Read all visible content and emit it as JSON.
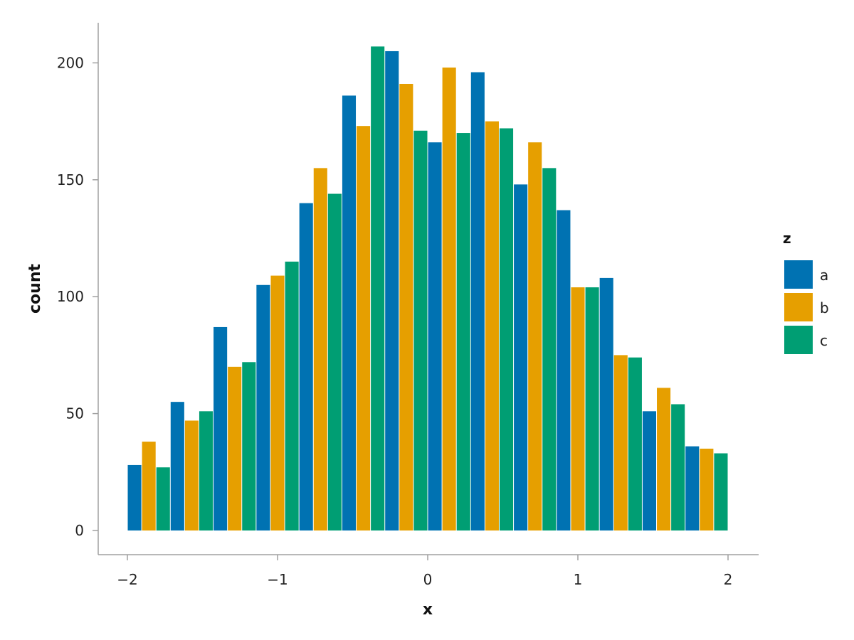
{
  "chart_data": {
    "type": "bar",
    "xlabel": "x",
    "ylabel": "count",
    "xlim": [
      -2.2,
      2.2
    ],
    "ylim": [
      -10,
      217
    ],
    "x_ticks": [
      -2,
      -1,
      0,
      1,
      2
    ],
    "x_tick_labels": [
      "−2",
      "−1",
      "0",
      "1",
      "2"
    ],
    "y_ticks": [
      0,
      50,
      100,
      150,
      200
    ],
    "y_tick_labels": [
      "0",
      "50",
      "100",
      "150",
      "200"
    ],
    "bin_edges": [
      -2.0,
      -1.7143,
      -1.4286,
      -1.1429,
      -0.8571,
      -0.5714,
      -0.2857,
      0.0,
      0.2857,
      0.5714,
      0.8571,
      1.1429,
      1.4286,
      1.7143,
      2.0
    ],
    "legend": {
      "title": "z",
      "placement": "right"
    },
    "series": [
      {
        "name": "a",
        "color": "#0072B2",
        "values": [
          28,
          55,
          87,
          105,
          140,
          186,
          205,
          166,
          196,
          148,
          137,
          108,
          51,
          36
        ]
      },
      {
        "name": "b",
        "color": "#E69F00",
        "values": [
          38,
          47,
          70,
          109,
          155,
          173,
          191,
          198,
          175,
          166,
          104,
          75,
          61,
          35
        ]
      },
      {
        "name": "c",
        "color": "#009E73",
        "values": [
          27,
          51,
          72,
          115,
          144,
          207,
          171,
          170,
          172,
          155,
          104,
          74,
          54,
          33
        ]
      }
    ],
    "grid": false
  }
}
